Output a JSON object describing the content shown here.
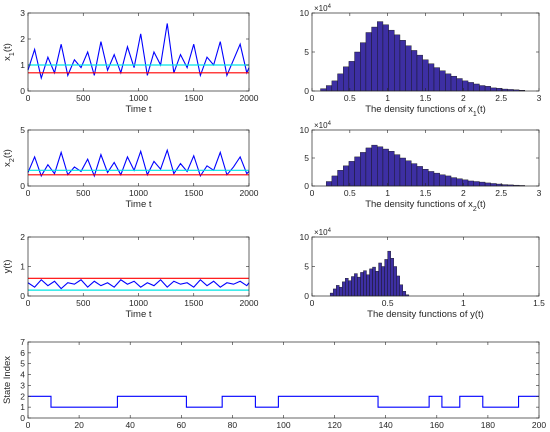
{
  "chart_data": [
    {
      "id": "ts_x1",
      "type": "line",
      "xlabel": "Time t",
      "ylabel": "x_1(t)",
      "xlim": [
        0,
        2000
      ],
      "ylim": [
        0,
        3
      ],
      "xticks": [
        0,
        500,
        1000,
        1500,
        2000
      ],
      "yticks": [
        0,
        1,
        2,
        3
      ],
      "grid": false,
      "series": [
        {
          "color": "#0000ff",
          "x": [
            0,
            60,
            120,
            180,
            240,
            300,
            360,
            420,
            480,
            540,
            600,
            660,
            720,
            780,
            840,
            900,
            960,
            1020,
            1080,
            1140,
            1200,
            1260,
            1320,
            1380,
            1440,
            1500,
            1560,
            1620,
            1680,
            1740,
            1800,
            1860,
            1920,
            1980,
            2000
          ],
          "y": [
            0.8,
            1.6,
            0.5,
            1.3,
            0.7,
            1.8,
            0.6,
            1.2,
            0.9,
            1.5,
            0.6,
            1.9,
            0.8,
            1.4,
            0.7,
            1.7,
            0.9,
            2.2,
            0.6,
            1.5,
            1.0,
            2.6,
            0.7,
            1.4,
            0.9,
            1.8,
            0.6,
            1.3,
            1.0,
            1.9,
            0.6,
            1.2,
            1.8,
            0.7,
            0.9
          ]
        },
        {
          "color": "#ff0000",
          "x": [
            0,
            2000
          ],
          "y": [
            0.7,
            0.7
          ]
        },
        {
          "color": "#00e5e5",
          "x": [
            0,
            2000
          ],
          "y": [
            1.0,
            1.0
          ]
        }
      ]
    },
    {
      "id": "hist_x1",
      "type": "bar",
      "xlabel": "The density functions of x_1(t)",
      "xlim": [
        0,
        3
      ],
      "ylim": [
        0,
        10
      ],
      "xticks": [
        0,
        0.5,
        1,
        1.5,
        2,
        2.5,
        3
      ],
      "yticks": [
        0,
        5,
        10
      ],
      "y_exponent": "×10^4",
      "bar_color": "#3d2fa3",
      "bin_width": 0.075,
      "x": [
        0.15,
        0.225,
        0.3,
        0.375,
        0.45,
        0.525,
        0.6,
        0.675,
        0.75,
        0.825,
        0.9,
        0.975,
        1.05,
        1.125,
        1.2,
        1.275,
        1.35,
        1.425,
        1.5,
        1.575,
        1.65,
        1.725,
        1.8,
        1.875,
        1.95,
        2.025,
        2.1,
        2.175,
        2.25,
        2.325,
        2.4,
        2.475,
        2.55,
        2.625,
        2.7,
        2.775
      ],
      "values": [
        0.3,
        0.7,
        1.3,
        2.2,
        3.1,
        3.8,
        5.0,
        6.2,
        7.5,
        8.2,
        8.9,
        8.5,
        7.8,
        7.2,
        6.5,
        5.8,
        5.2,
        4.6,
        4.0,
        3.5,
        3.0,
        2.6,
        2.2,
        1.9,
        1.6,
        1.3,
        1.1,
        0.9,
        0.7,
        0.6,
        0.4,
        0.35,
        0.25,
        0.2,
        0.15,
        0.1
      ]
    },
    {
      "id": "ts_x2",
      "type": "line",
      "xlabel": "Time t",
      "ylabel": "x_2(t)",
      "xlim": [
        0,
        2000
      ],
      "ylim": [
        0,
        5
      ],
      "xticks": [
        0,
        500,
        1000,
        1500,
        2000
      ],
      "yticks": [
        0,
        5
      ],
      "grid": false,
      "series": [
        {
          "color": "#0000ff",
          "x": [
            0,
            60,
            120,
            180,
            240,
            300,
            360,
            420,
            480,
            540,
            600,
            660,
            720,
            780,
            840,
            900,
            960,
            1020,
            1080,
            1140,
            1200,
            1260,
            1320,
            1380,
            1440,
            1500,
            1560,
            1620,
            1680,
            1740,
            1800,
            1860,
            1920,
            1980,
            2000
          ],
          "y": [
            1.2,
            2.6,
            0.9,
            1.9,
            1.1,
            3.0,
            1.0,
            1.7,
            1.3,
            2.4,
            0.9,
            2.8,
            1.2,
            2.1,
            1.0,
            2.6,
            1.4,
            3.1,
            1.0,
            2.2,
            1.5,
            3.2,
            1.1,
            2.0,
            1.3,
            2.7,
            0.9,
            1.8,
            1.4,
            3.0,
            1.0,
            1.7,
            2.6,
            1.1,
            1.3
          ]
        },
        {
          "color": "#ff0000",
          "x": [
            0,
            2000
          ],
          "y": [
            1.0,
            1.0
          ]
        },
        {
          "color": "#00e5e5",
          "x": [
            0,
            2000
          ],
          "y": [
            1.4,
            1.4
          ]
        }
      ]
    },
    {
      "id": "hist_x2",
      "type": "bar",
      "xlabel": "The density functions of x_2(t)",
      "xlim": [
        0,
        3
      ],
      "ylim": [
        0,
        10
      ],
      "xticks": [
        0,
        0.5,
        1,
        1.5,
        2,
        2.5,
        3
      ],
      "yticks": [
        0,
        5,
        10
      ],
      "y_exponent": "×10^4",
      "bar_color": "#3d2fa3",
      "bin_width": 0.075,
      "x": [
        0.225,
        0.3,
        0.375,
        0.45,
        0.525,
        0.6,
        0.675,
        0.75,
        0.825,
        0.9,
        0.975,
        1.05,
        1.125,
        1.2,
        1.275,
        1.35,
        1.425,
        1.5,
        1.575,
        1.65,
        1.725,
        1.8,
        1.875,
        1.95,
        2.025,
        2.1,
        2.175,
        2.25,
        2.325,
        2.4,
        2.475,
        2.55,
        2.625,
        2.7,
        2.775
      ],
      "values": [
        0.8,
        1.8,
        2.8,
        3.6,
        4.4,
        5.2,
        6.0,
        6.8,
        7.3,
        7.0,
        6.6,
        6.2,
        5.6,
        5.0,
        4.5,
        4.0,
        3.5,
        3.0,
        2.6,
        2.3,
        2.0,
        1.8,
        1.5,
        1.3,
        1.1,
        0.9,
        0.8,
        0.7,
        0.55,
        0.45,
        0.35,
        0.25,
        0.2,
        0.15,
        0.1
      ]
    },
    {
      "id": "ts_y",
      "type": "line",
      "xlabel": "Time t",
      "ylabel": "y(t)",
      "xlim": [
        0,
        2000
      ],
      "ylim": [
        0,
        2
      ],
      "xticks": [
        0,
        500,
        1000,
        1500,
        2000
      ],
      "yticks": [
        0,
        1,
        2
      ],
      "grid": false,
      "series": [
        {
          "color": "#0000ff",
          "x": [
            0,
            60,
            120,
            180,
            240,
            300,
            360,
            420,
            480,
            540,
            600,
            660,
            720,
            780,
            840,
            900,
            960,
            1020,
            1080,
            1140,
            1200,
            1260,
            1320,
            1380,
            1440,
            1500,
            1560,
            1620,
            1680,
            1740,
            1800,
            1860,
            1920,
            1980,
            2000
          ],
          "y": [
            0.45,
            0.3,
            0.55,
            0.35,
            0.5,
            0.25,
            0.45,
            0.4,
            0.55,
            0.3,
            0.5,
            0.35,
            0.45,
            0.3,
            0.55,
            0.4,
            0.5,
            0.3,
            0.45,
            0.35,
            0.55,
            0.3,
            0.5,
            0.4,
            0.45,
            0.3,
            0.55,
            0.35,
            0.5,
            0.3,
            0.45,
            0.4,
            0.5,
            0.35,
            0.45
          ]
        },
        {
          "color": "#ff0000",
          "x": [
            0,
            2000
          ],
          "y": [
            0.6,
            0.6
          ]
        },
        {
          "color": "#00e5e5",
          "x": [
            0,
            2000
          ],
          "y": [
            0.2,
            0.2
          ]
        }
      ]
    },
    {
      "id": "hist_y",
      "type": "bar",
      "xlabel": "The density functions of y(t)",
      "xlim": [
        0,
        1.5
      ],
      "ylim": [
        0,
        10
      ],
      "xticks": [
        0,
        0.5,
        1,
        1.5
      ],
      "yticks": [
        0,
        5,
        10
      ],
      "y_exponent": "×10^4",
      "bar_color": "#3d2fa3",
      "bin_width": 0.02,
      "x": [
        0.13,
        0.15,
        0.17,
        0.19,
        0.21,
        0.23,
        0.25,
        0.27,
        0.29,
        0.31,
        0.33,
        0.35,
        0.37,
        0.39,
        0.41,
        0.43,
        0.45,
        0.47,
        0.49,
        0.51,
        0.53,
        0.55,
        0.57,
        0.59,
        0.61,
        0.63
      ],
      "values": [
        0.5,
        1.2,
        1.8,
        1.5,
        2.4,
        3.0,
        2.6,
        3.3,
        3.8,
        3.2,
        4.0,
        4.3,
        3.6,
        4.6,
        4.9,
        4.2,
        5.6,
        5.0,
        6.2,
        7.6,
        6.4,
        5.0,
        3.4,
        1.9,
        0.8,
        0.2
      ]
    },
    {
      "id": "state",
      "type": "line",
      "ylabel": "State Index",
      "xlim": [
        0,
        200
      ],
      "ylim": [
        0,
        7
      ],
      "xticks": [
        0,
        20,
        40,
        60,
        80,
        100,
        120,
        140,
        160,
        180,
        200
      ],
      "yticks": [
        0,
        1,
        2,
        3,
        4,
        5,
        6,
        7
      ],
      "grid": false,
      "step": true,
      "series": [
        {
          "color": "#0000ff",
          "x": [
            0,
            9,
            9,
            35,
            35,
            62,
            62,
            76,
            76,
            89,
            89,
            98,
            98,
            137,
            137,
            157,
            157,
            162,
            162,
            169,
            169,
            178,
            178,
            192,
            192,
            200
          ],
          "y": [
            2,
            2,
            1,
            1,
            2,
            2,
            1,
            1,
            2,
            2,
            1,
            1,
            2,
            2,
            1,
            1,
            2,
            2,
            1,
            1,
            2,
            2,
            1,
            1,
            2,
            2
          ]
        }
      ]
    }
  ]
}
